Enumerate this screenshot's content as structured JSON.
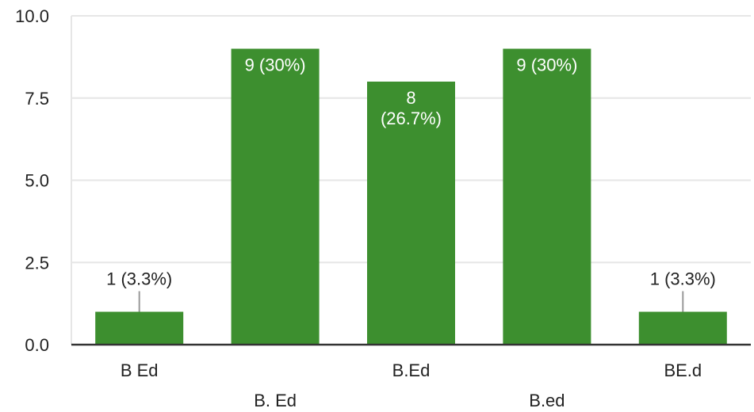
{
  "chart_data": {
    "type": "bar",
    "title": "",
    "xlabel": "",
    "ylabel": "",
    "categories": [
      "B Ed",
      "B. Ed",
      "B.Ed",
      "B.ed",
      "BE.d"
    ],
    "values": [
      1,
      9,
      8,
      9,
      1
    ],
    "data_labels": [
      [
        "1 (3.3%)"
      ],
      [
        "9 (30%)"
      ],
      [
        "8",
        "(26.7%)"
      ],
      [
        "9 (30%)"
      ],
      [
        "1 (3.3%)"
      ]
    ],
    "y_ticks": [
      "0.0",
      "2.5",
      "5.0",
      "7.5",
      "10.0"
    ],
    "ylim": [
      0,
      10
    ],
    "grid": true,
    "legend": "none",
    "bar_color": "#3d8f2f",
    "grid_color": "#e6e6e6",
    "axis_color": "#333333"
  }
}
